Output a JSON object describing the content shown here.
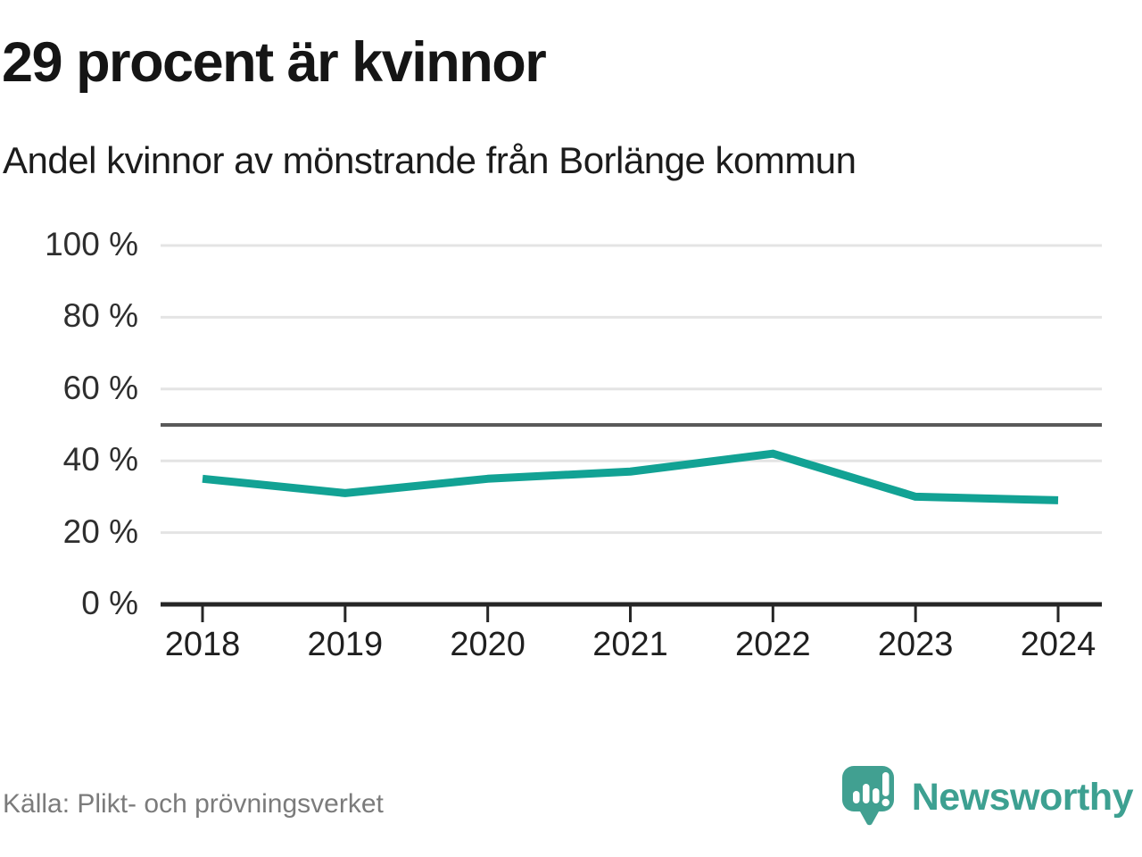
{
  "header": {
    "title": "29 procent är kvinnor",
    "subtitle": "Andel kvinnor av mönstrande från Borlänge kommun"
  },
  "chart_data": {
    "type": "line",
    "x": [
      2018,
      2019,
      2020,
      2021,
      2022,
      2023,
      2024
    ],
    "series": [
      {
        "name": "Andel kvinnor av mönstrande",
        "values": [
          35,
          31,
          35,
          37,
          42,
          30,
          29
        ]
      }
    ],
    "unit": "%",
    "ylim": [
      0,
      100
    ],
    "yticks": [
      0,
      20,
      40,
      60,
      80,
      100
    ],
    "ytick_labels": [
      "0 %",
      "20 %",
      "40 %",
      "60 %",
      "80 %",
      "100 %"
    ],
    "xtick_labels": [
      "2018",
      "2019",
      "2020",
      "2021",
      "2022",
      "2023",
      "2024"
    ],
    "reference_line": 50,
    "grid": true,
    "legend": "none",
    "line_color": "#12a294",
    "gridline_color": "#e4e4e4",
    "reference_line_color": "#595959",
    "axis_color": "#262626"
  },
  "footer": {
    "source": "Källa: Plikt- och prövningsverket",
    "brand": "Newsworthy",
    "brand_color": "#3da091",
    "logo_bubble_color": "#41a091"
  },
  "icons": {
    "logo": "newsworthy-speech-bubble-chart-icon"
  }
}
